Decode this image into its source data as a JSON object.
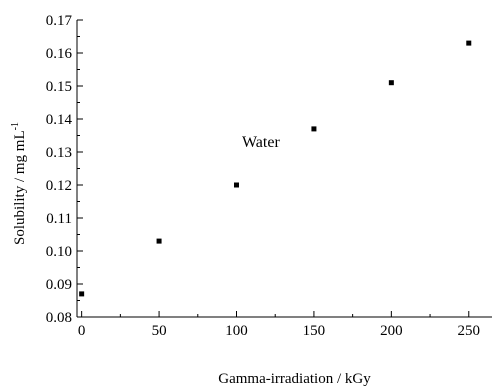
{
  "chart_data": {
    "type": "scatter",
    "xlabel": "Gamma-irradiation / kGy",
    "ylabel_main": "Solubility / mg mL",
    "ylabel_sup": "-1",
    "xlim": [
      -3,
      265
    ],
    "ylim": [
      0.08,
      0.17
    ],
    "x_ticks": [
      0,
      50,
      100,
      150,
      200,
      250
    ],
    "x_minor_ticks": [
      25,
      75,
      125,
      175,
      225
    ],
    "y_ticks": [
      0.08,
      0.09,
      0.1,
      0.11,
      0.12,
      0.13,
      0.14,
      0.15,
      0.16,
      0.17
    ],
    "y_minor_ticks": [
      0.085,
      0.095,
      0.105,
      0.115,
      0.125,
      0.135,
      0.145,
      0.155,
      0.165
    ],
    "x_tick_labels": [
      "0",
      "50",
      "100",
      "150",
      "200",
      "250"
    ],
    "y_tick_labels": [
      "0.08",
      "0.09",
      "0.10",
      "0.11",
      "0.12",
      "0.13",
      "0.14",
      "0.15",
      "0.16",
      "0.17"
    ],
    "points": [
      {
        "x": 0,
        "y": 0.087
      },
      {
        "x": 50,
        "y": 0.103
      },
      {
        "x": 100,
        "y": 0.12
      },
      {
        "x": 150,
        "y": 0.137
      },
      {
        "x": 200,
        "y": 0.151
      },
      {
        "x": 250,
        "y": 0.163
      }
    ],
    "annotation": {
      "text": "Water",
      "x": 110,
      "y": 0.133
    },
    "grid": false,
    "marker": "square",
    "color": "#000000"
  }
}
